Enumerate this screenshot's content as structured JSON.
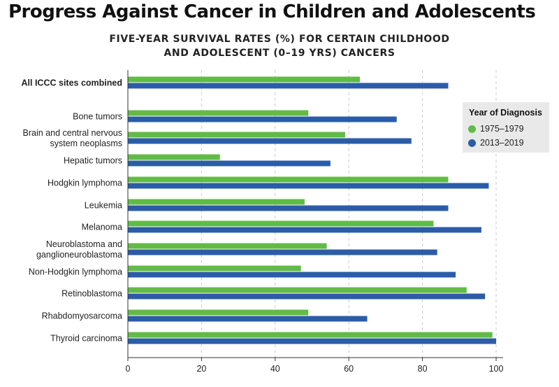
{
  "page": {
    "title": "Progress Against Cancer in Children and Adolescents"
  },
  "chart_data": {
    "type": "bar",
    "orientation": "horizontal",
    "subtitle_line1": "FIVE-YEAR SURVIVAL RATES (%) FOR CERTAIN CHILDHOOD",
    "subtitle_line2": "AND ADOLESCENT (0–19 YRS) CANCERS",
    "categories": [
      [
        "All ICCC sites combined"
      ],
      [
        "Bone tumors"
      ],
      [
        "Brain and central nervous",
        "system neoplasms"
      ],
      [
        "Hepatic tumors"
      ],
      [
        "Hodgkin lymphoma"
      ],
      [
        "Leukemia"
      ],
      [
        "Melanoma"
      ],
      [
        "Neuroblastoma and",
        "ganglioneuroblastoma"
      ],
      [
        "Non-Hodgkin lymphoma"
      ],
      [
        "Retinoblastoma"
      ],
      [
        "Rhabdomyosarcoma"
      ],
      [
        "Thyroid carcinoma"
      ]
    ],
    "bold_categories": [
      0
    ],
    "series": [
      {
        "name": "1975–1979",
        "color": "#62bb46",
        "values": [
          63,
          49,
          59,
          25,
          87,
          48,
          83,
          54,
          47,
          92,
          49,
          99
        ]
      },
      {
        "name": "2013–2019",
        "color": "#2b5ca8",
        "values": [
          87,
          73,
          77,
          55,
          98,
          87,
          96,
          84,
          89,
          97,
          65,
          100
        ]
      }
    ],
    "xlim": [
      0,
      100
    ],
    "xticks": [
      0,
      20,
      40,
      60,
      80,
      100
    ],
    "grid": "vertical dashed",
    "legend": {
      "title": "Year of Diagnosis",
      "position": "right"
    }
  }
}
